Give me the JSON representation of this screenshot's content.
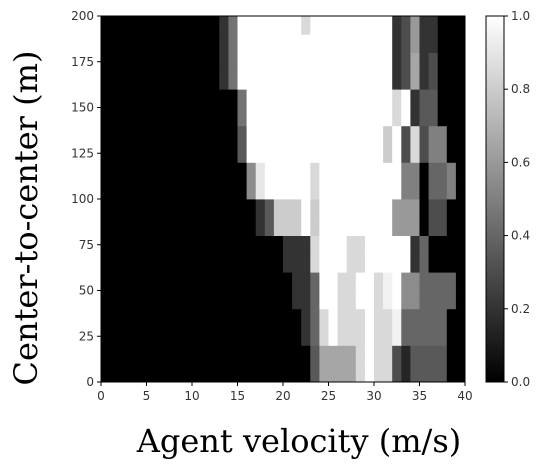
{
  "chart_data": {
    "type": "heatmap",
    "xlabel": "Agent velocity (m/s)",
    "ylabel": "Center-to-center (m)",
    "xlim": [
      0,
      40
    ],
    "ylim": [
      0,
      200
    ],
    "x_ticks": [
      0,
      5,
      10,
      15,
      20,
      25,
      30,
      35,
      40
    ],
    "y_ticks": [
      0,
      25,
      50,
      75,
      100,
      125,
      150,
      175,
      200
    ],
    "colorbar": {
      "range": [
        0.0,
        1.0
      ],
      "ticks": [
        "0.0",
        "0.2",
        "0.4",
        "0.6",
        "0.8",
        "1.0"
      ],
      "colormap": "gray",
      "position": "right"
    },
    "grid": false,
    "x_bin_width": 1,
    "y_bin_height": 10,
    "y_bins_bottom_to_top": [
      [
        0,
        0,
        0,
        0,
        0,
        0,
        0,
        0,
        0,
        0,
        0,
        0,
        0,
        0,
        0,
        0,
        0,
        0,
        0,
        0,
        0,
        0,
        0,
        0.35,
        0.65,
        0.65,
        0.65,
        0.65,
        0.85,
        1.0,
        0.85,
        0.85,
        0.3,
        0.15,
        0.35,
        0.35,
        0.35,
        0.35,
        0,
        0
      ],
      [
        0,
        0,
        0,
        0,
        0,
        0,
        0,
        0,
        0,
        0,
        0,
        0,
        0,
        0,
        0,
        0,
        0,
        0,
        0,
        0,
        0,
        0,
        0,
        0.35,
        0.65,
        0.65,
        0.65,
        0.65,
        0.85,
        1.0,
        0.85,
        0.85,
        0.3,
        0.15,
        0.35,
        0.35,
        0.35,
        0.35,
        0,
        0
      ],
      [
        0,
        0,
        0,
        0,
        0,
        0,
        0,
        0,
        0,
        0,
        0,
        0,
        0,
        0,
        0,
        0,
        0,
        0,
        0,
        0,
        0,
        0,
        0.2,
        0.4,
        0.85,
        1.0,
        0.85,
        0.85,
        0.85,
        1.0,
        0.85,
        0.85,
        0.95,
        0.4,
        0.4,
        0.4,
        0.4,
        0.4,
        0,
        0
      ],
      [
        0,
        0,
        0,
        0,
        0,
        0,
        0,
        0,
        0,
        0,
        0,
        0,
        0,
        0,
        0,
        0,
        0,
        0,
        0,
        0,
        0,
        0,
        0.2,
        0.4,
        0.85,
        1.0,
        0.85,
        0.85,
        0.85,
        1.0,
        0.85,
        0.85,
        0.95,
        0.4,
        0.4,
        0.4,
        0.4,
        0.4,
        0,
        0
      ],
      [
        0,
        0,
        0,
        0,
        0,
        0,
        0,
        0,
        0,
        0,
        0,
        0,
        0,
        0,
        0,
        0,
        0,
        0,
        0,
        0,
        0,
        0.2,
        0.2,
        0.4,
        1.0,
        1.0,
        0.85,
        0.85,
        1.0,
        1.0,
        0.85,
        0.95,
        1.0,
        0.55,
        0.55,
        0.4,
        0.4,
        0.4,
        0.4,
        0
      ],
      [
        0,
        0,
        0,
        0,
        0,
        0,
        0,
        0,
        0,
        0,
        0,
        0,
        0,
        0,
        0,
        0,
        0,
        0,
        0,
        0,
        0,
        0.2,
        0.2,
        0.4,
        1.0,
        1.0,
        0.85,
        0.85,
        1.0,
        1.0,
        0.85,
        0.95,
        1.0,
        0.55,
        0.55,
        0.4,
        0.4,
        0.4,
        0.4,
        0
      ],
      [
        0,
        0,
        0,
        0,
        0,
        0,
        0,
        0,
        0,
        0,
        0,
        0,
        0,
        0,
        0,
        0,
        0,
        0,
        0,
        0,
        0.2,
        0.2,
        0.2,
        0.85,
        1.0,
        1.0,
        1.0,
        0.85,
        0.85,
        1.0,
        1.0,
        1.0,
        1.0,
        1.0,
        0.2,
        0.4,
        0,
        0,
        0,
        0
      ],
      [
        0,
        0,
        0,
        0,
        0,
        0,
        0,
        0,
        0,
        0,
        0,
        0,
        0,
        0,
        0,
        0,
        0,
        0,
        0,
        0,
        0.2,
        0.2,
        0.2,
        0.85,
        1.0,
        1.0,
        1.0,
        0.85,
        0.85,
        1.0,
        1.0,
        1.0,
        1.0,
        1.0,
        0.2,
        0.4,
        0,
        0,
        0,
        0
      ],
      [
        0,
        0,
        0,
        0,
        0,
        0,
        0,
        0,
        0,
        0,
        0,
        0,
        0,
        0,
        0,
        0,
        0,
        0.2,
        0.35,
        0.8,
        0.8,
        0.8,
        1.0,
        0.8,
        1.0,
        1.0,
        1.0,
        1.0,
        1.0,
        1.0,
        1.0,
        1.0,
        0.6,
        0.6,
        0.6,
        0,
        0.3,
        0.3,
        0,
        0
      ],
      [
        0,
        0,
        0,
        0,
        0,
        0,
        0,
        0,
        0,
        0,
        0,
        0,
        0,
        0,
        0,
        0,
        0,
        0.2,
        0.35,
        0.8,
        0.8,
        0.8,
        1.0,
        0.8,
        1.0,
        1.0,
        1.0,
        1.0,
        1.0,
        1.0,
        1.0,
        1.0,
        0.6,
        0.6,
        0.6,
        0,
        0.3,
        0.3,
        0,
        0
      ],
      [
        0,
        0,
        0,
        0,
        0,
        0,
        0,
        0,
        0,
        0,
        0,
        0,
        0,
        0,
        0,
        0,
        0.55,
        0.9,
        1.0,
        1.0,
        1.0,
        1.0,
        1.0,
        0.85,
        1.0,
        1.0,
        1.0,
        1.0,
        1.0,
        1.0,
        1.0,
        1.0,
        1.0,
        0.5,
        0.5,
        0,
        0.4,
        0.4,
        0.5,
        0
      ],
      [
        0,
        0,
        0,
        0,
        0,
        0,
        0,
        0,
        0,
        0,
        0,
        0,
        0,
        0,
        0,
        0,
        0.55,
        0.9,
        1.0,
        1.0,
        1.0,
        1.0,
        1.0,
        0.85,
        1.0,
        1.0,
        1.0,
        1.0,
        1.0,
        1.0,
        1.0,
        1.0,
        1.0,
        0.5,
        0.5,
        0,
        0.4,
        0.4,
        0.5,
        0
      ],
      [
        0,
        0,
        0,
        0,
        0,
        0,
        0,
        0,
        0,
        0,
        0,
        0,
        0,
        0,
        0,
        0.35,
        1.0,
        1.0,
        1.0,
        1.0,
        1.0,
        1.0,
        1.0,
        1.0,
        1.0,
        1.0,
        1.0,
        1.0,
        1.0,
        1.0,
        1.0,
        0.8,
        1.0,
        0.3,
        0.85,
        0.3,
        0.5,
        0.5,
        0,
        0
      ],
      [
        0,
        0,
        0,
        0,
        0,
        0,
        0,
        0,
        0,
        0,
        0,
        0,
        0,
        0,
        0,
        0.35,
        1.0,
        1.0,
        1.0,
        1.0,
        1.0,
        1.0,
        1.0,
        1.0,
        1.0,
        1.0,
        1.0,
        1.0,
        1.0,
        1.0,
        1.0,
        0.8,
        1.0,
        0.3,
        0.85,
        0.3,
        0.5,
        0.5,
        0,
        0
      ],
      [
        0,
        0,
        0,
        0,
        0,
        0,
        0,
        0,
        0,
        0,
        0,
        0,
        0,
        0,
        0,
        0.45,
        1.0,
        1.0,
        1.0,
        1.0,
        1.0,
        1.0,
        1.0,
        1.0,
        1.0,
        1.0,
        1.0,
        1.0,
        1.0,
        1.0,
        1.0,
        1.0,
        0.85,
        1.0,
        0.2,
        0.35,
        0.35,
        0,
        0,
        0
      ],
      [
        0,
        0,
        0,
        0,
        0,
        0,
        0,
        0,
        0,
        0,
        0,
        0,
        0,
        0,
        0,
        0.45,
        1.0,
        1.0,
        1.0,
        1.0,
        1.0,
        1.0,
        1.0,
        1.0,
        1.0,
        1.0,
        1.0,
        1.0,
        1.0,
        1.0,
        1.0,
        1.0,
        0.85,
        1.0,
        0.2,
        0.35,
        0.35,
        0,
        0,
        0
      ],
      [
        0,
        0,
        0,
        0,
        0,
        0,
        0,
        0,
        0,
        0,
        0,
        0,
        0,
        0.2,
        0.45,
        1.0,
        1.0,
        1.0,
        1.0,
        1.0,
        1.0,
        1.0,
        1.0,
        1.0,
        1.0,
        1.0,
        1.0,
        1.0,
        1.0,
        1.0,
        1.0,
        1.0,
        0.2,
        0.3,
        0.65,
        0.2,
        0.3,
        0,
        0,
        0
      ],
      [
        0,
        0,
        0,
        0,
        0,
        0,
        0,
        0,
        0,
        0,
        0,
        0,
        0,
        0.2,
        0.45,
        1.0,
        1.0,
        1.0,
        1.0,
        1.0,
        1.0,
        1.0,
        1.0,
        1.0,
        1.0,
        1.0,
        1.0,
        1.0,
        1.0,
        1.0,
        1.0,
        1.0,
        0.2,
        0.3,
        0.65,
        0.2,
        0.3,
        0,
        0,
        0
      ],
      [
        0,
        0,
        0,
        0,
        0,
        0,
        0,
        0,
        0,
        0,
        0,
        0,
        0,
        0.2,
        0.45,
        1.0,
        1.0,
        1.0,
        1.0,
        1.0,
        1.0,
        1.0,
        1.0,
        1.0,
        1.0,
        1.0,
        1.0,
        1.0,
        1.0,
        1.0,
        1.0,
        1.0,
        0.2,
        0.3,
        0.6,
        0.2,
        0.2,
        0,
        0,
        0
      ],
      [
        0,
        0,
        0,
        0,
        0,
        0,
        0,
        0,
        0,
        0,
        0,
        0,
        0,
        0.2,
        0.45,
        1.0,
        1.0,
        1.0,
        1.0,
        1.0,
        1.0,
        1.0,
        0.85,
        1.0,
        1.0,
        1.0,
        1.0,
        1.0,
        1.0,
        1.0,
        1.0,
        1.0,
        0.2,
        0.3,
        0.6,
        0.2,
        0.2,
        0,
        0,
        0
      ]
    ]
  }
}
